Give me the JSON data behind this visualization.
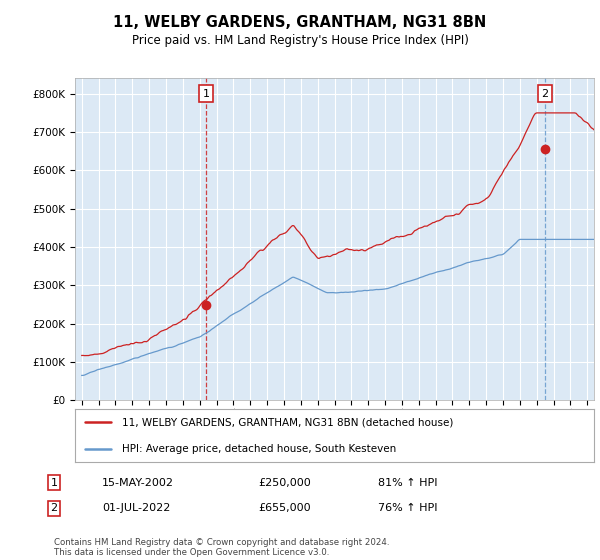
{
  "title": "11, WELBY GARDENS, GRANTHAM, NG31 8BN",
  "subtitle": "Price paid vs. HM Land Registry's House Price Index (HPI)",
  "yticks": [
    0,
    100000,
    200000,
    300000,
    400000,
    500000,
    600000,
    700000,
    800000
  ],
  "xlim_start": 1994.6,
  "xlim_end": 2025.4,
  "ylim": [
    0,
    840000
  ],
  "sale1_date": 2002.37,
  "sale1_price": 250000,
  "sale2_date": 2022.5,
  "sale2_price": 655000,
  "property_color": "#cc2222",
  "hpi_color": "#6699cc",
  "vline1_color": "#cc2222",
  "vline2_color": "#6699cc",
  "chart_bg": "#dce9f5",
  "legend_property": "11, WELBY GARDENS, GRANTHAM, NG31 8BN (detached house)",
  "legend_hpi": "HPI: Average price, detached house, South Kesteven",
  "table_row1": [
    "1",
    "15-MAY-2002",
    "£250,000",
    "81% ↑ HPI"
  ],
  "table_row2": [
    "2",
    "01-JUL-2022",
    "£655,000",
    "76% ↑ HPI"
  ],
  "footer": "Contains HM Land Registry data © Crown copyright and database right 2024.\nThis data is licensed under the Open Government Licence v3.0.",
  "background_color": "#ffffff",
  "grid_color": "#ffffff"
}
